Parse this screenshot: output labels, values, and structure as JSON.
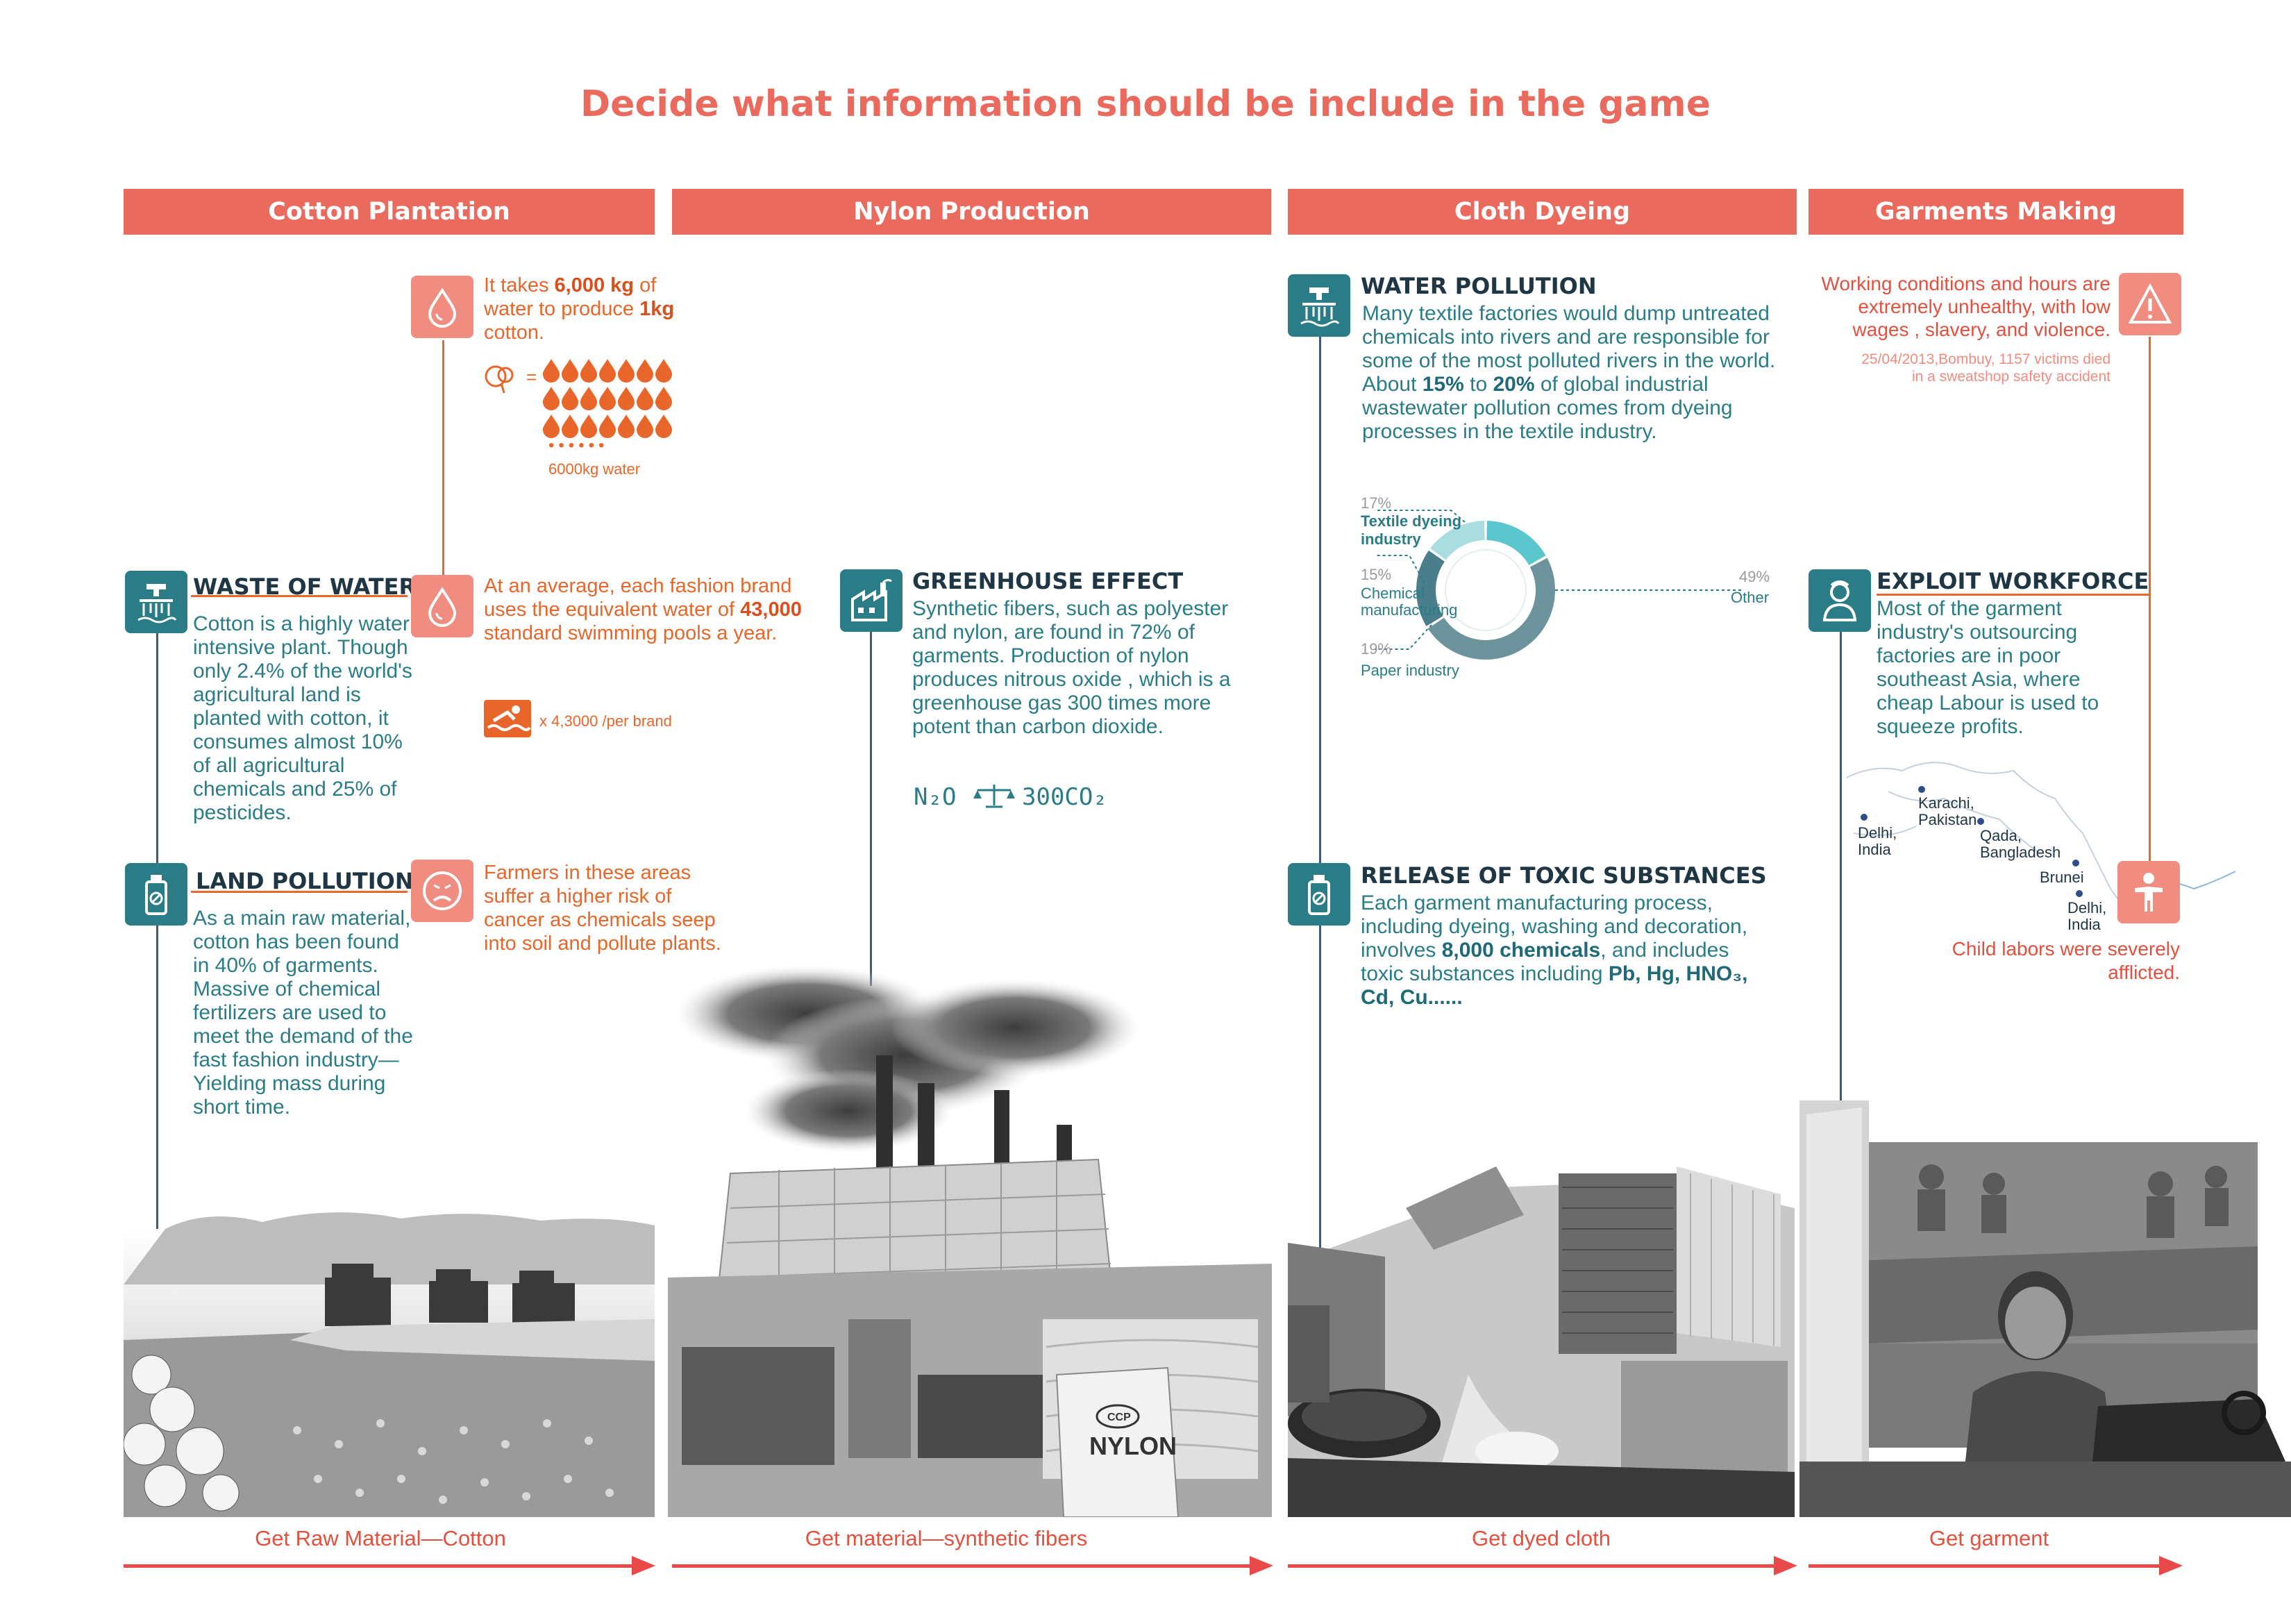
{
  "title": "Decide what information should be include in the game",
  "phases": [
    {
      "label": "Cotton Plantation"
    },
    {
      "label": "Nylon Production"
    },
    {
      "label": "Cloth Dyeing"
    },
    {
      "label": "Garments Making"
    }
  ],
  "cotton": {
    "water_fact": {
      "pre": "It takes ",
      "kg": "6,000 kg",
      "mid": " of water to produce ",
      "kg2": "1kg",
      "post": " cotton."
    },
    "water_caption": "6000kg water",
    "equals": "=",
    "waste": {
      "heading": "WASTE OF WATER",
      "text": "Cotton is a highly water intensive plant. Though only 2.4% of the world's agricultural land is planted with cotton, it consumes almost 10% of all agricultural chemicals and 25% of pesticides."
    },
    "pools": {
      "pre": "At an average, each fashion brand uses the equivalent water of ",
      "num": "43,000",
      "post": " standard swimming pools a year.",
      "caption": "x 4,3000 /per brand"
    },
    "land": {
      "heading": "LAND POLLUTION",
      "text": "As a main raw material, cotton has been found in 40% of garments.\nMassive of chemical fertilizers are used to meet the demand of the fast fashion industry—Yielding mass during short time."
    },
    "farmers": "Farmers in these areas suffer a higher risk of cancer as chemicals seep into soil and pollute plants.",
    "flow": "Get Raw Material—Cotton"
  },
  "nylon": {
    "heading": "GREENHOUSE EFFECT",
    "text": "Synthetic fibers, such as polyester and nylon, are found in 72% of garments. Production of nylon produces nitrous oxide , which is a greenhouse gas 300 times more potent than carbon dioxide.",
    "formula_left": "N₂O",
    "formula_right": "300CO₂",
    "bag_brand": "CCP",
    "bag_label": "NYLON",
    "flow": "Get material—synthetic fibers"
  },
  "dyeing": {
    "heading": "WATER POLLUTION",
    "text_pre": "Many textile factories would dump untreated chemicals into rivers and are responsible for some of the most polluted rivers in the world. About ",
    "p1": "15%",
    "text_mid": " to ",
    "p2": "20%",
    "text_post": " of global industrial wastewater pollution comes from dyeing processes in the textile industry.",
    "toxic_heading": "RELEASE OF TOXIC SUBSTANCES",
    "toxic_pre": "Each garment manufacturing process, including dyeing, washing and decoration, involves ",
    "toxic_num": "8,000 chemicals",
    "toxic_mid": ", and includes toxic substances including ",
    "toxic_list": "Pb, Hg, HNO₃, Cd, Cu......",
    "flow": "Get dyed cloth"
  },
  "chart_data": {
    "type": "pie",
    "title": "",
    "slices": [
      {
        "label": "Textile dyeing industry",
        "pct_label": "17%",
        "value": 17,
        "color": "#5bc7cc"
      },
      {
        "label": "Chemical manufacturing",
        "pct_label": "15%",
        "value": 15,
        "color": "#a9dde0"
      },
      {
        "label": "Paper industry",
        "pct_label": "19%",
        "value": 19,
        "color": "#4a7e8a"
      },
      {
        "label": "Other",
        "pct_label": "49%",
        "value": 49,
        "color": "#6d939c"
      }
    ]
  },
  "garments": {
    "conditions": "Working conditions and hours are extremely unhealthy, with low wages , slavery, and violence.",
    "accident": "25/04/2013,Bombuy, 1157 victims died in a sweatshop safety accident",
    "heading": "EXPLOIT WORKFORCE",
    "text": "Most of the garment industry's outsourcing factories are in poor southeast Asia, where cheap Labour is used to squeeze profits.",
    "map_points": [
      {
        "label": "Karachi, Pakistan"
      },
      {
        "label": "Delhi, India"
      },
      {
        "label": "Qada, Bangladesh"
      },
      {
        "label": "Brunei"
      },
      {
        "label": "Delhi, India"
      }
    ],
    "child": "Child labors were severely afflicted.",
    "flow": "Get garment"
  },
  "colors": {
    "accent": "#ea6a5e",
    "teal": "#2a7c86",
    "orange": "#e8662a",
    "navy": "#1f3644",
    "arrow": "#e84a4a"
  }
}
